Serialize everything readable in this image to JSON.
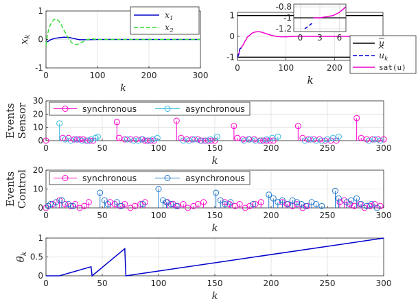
{
  "colors": {
    "x1": "#0000cc",
    "x2": "#33dd33",
    "sat": "#ee00cc",
    "u_bar": "#000000",
    "u_hat": "#0000cc",
    "sync_sensor": "#ff00cc",
    "async_sensor": "#33bbdd",
    "sync_control": "#ff00cc",
    "async_control": "#1f77cc",
    "theta": "#0000cc"
  },
  "chart_data": [
    {
      "id": "states",
      "type": "line",
      "ylabel": "x_k",
      "xlabel": "k",
      "xlim": [
        0,
        300
      ],
      "ylim": [
        -1,
        1
      ],
      "xticks": [
        "0",
        "100",
        "200",
        "300"
      ],
      "yticks": [
        "-1",
        "0",
        "1"
      ],
      "grid": true,
      "legend_position": "top-right",
      "series": [
        {
          "name": "x1",
          "label_base": "x",
          "label_sub": "1",
          "x": [
            0,
            3,
            8,
            15,
            25,
            35,
            45,
            55,
            65,
            80,
            100,
            130,
            300
          ],
          "y": [
            -0.05,
            -0.08,
            -0.02,
            0.03,
            0.06,
            0.08,
            0.07,
            0.03,
            -0.01,
            -0.01,
            0.0,
            0.0,
            0.0
          ]
        },
        {
          "name": "x2",
          "label_base": "x",
          "label_sub": "2",
          "x": [
            0,
            3,
            8,
            15,
            20,
            25,
            30,
            40,
            50,
            60,
            70,
            80,
            90,
            100,
            120,
            300
          ],
          "y": [
            -0.2,
            0.2,
            0.5,
            0.7,
            0.72,
            0.65,
            0.5,
            0.15,
            -0.12,
            -0.18,
            -0.1,
            0.0,
            0.02,
            0.0,
            0.0,
            0.0
          ]
        }
      ]
    },
    {
      "id": "inputs",
      "type": "line",
      "xlabel": "k",
      "xlim": [
        0,
        300
      ],
      "ylim": [
        -1.15,
        1.15
      ],
      "xticks": [
        "0",
        "100",
        "200",
        "300"
      ],
      "yticks": [
        "-1",
        "0",
        "1"
      ],
      "grid": true,
      "legend_position": "bottom-right",
      "series": [
        {
          "name": "u_bar_upper",
          "x": [
            0,
            300
          ],
          "y": [
            1,
            1
          ]
        },
        {
          "name": "u_bar_lower",
          "x": [
            0,
            300
          ],
          "y": [
            -1,
            -1
          ]
        },
        {
          "name": "u_hat",
          "x": [
            0,
            3,
            5,
            10
          ],
          "y": [
            -1.0,
            -0.8,
            -0.6,
            -0.5
          ]
        },
        {
          "name": "sat_u_hat",
          "x": [
            0,
            3,
            5,
            8,
            10,
            12,
            15,
            18,
            20,
            25,
            30,
            35,
            40,
            45,
            50,
            60,
            70,
            80,
            90,
            100,
            120,
            150,
            300
          ],
          "y": [
            -1,
            -0.85,
            -0.6,
            -0.55,
            -0.45,
            -0.4,
            -0.25,
            -0.15,
            -0.05,
            0.05,
            0.15,
            0.2,
            0.22,
            0.22,
            0.2,
            0.12,
            0.05,
            0.0,
            -0.02,
            -0.02,
            0.0,
            0.0,
            0.0
          ]
        }
      ],
      "legend": [
        "u_bar",
        "u_hat_k",
        "sat(u_hat_k)"
      ],
      "legend_text": {
        "u_bar": "u",
        "u_hat": "u",
        "u_hat_sub": "k",
        "sat": "sat(",
        "sat_close": ")"
      },
      "inset": {
        "xlim": [
          -1,
          7
        ],
        "ylim": [
          -1.25,
          -0.75
        ],
        "xticks": [
          "0",
          "3",
          "6"
        ],
        "yticks": [
          "-0.8",
          "-1",
          "-1.2"
        ],
        "series": [
          {
            "name": "u_bar_lower",
            "x": [
              -1,
              7
            ],
            "y": [
              -1,
              -1
            ]
          },
          {
            "name": "u_hat",
            "x": [
              0.7,
              1.8
            ],
            "y": [
              -1.2,
              -1.1
            ]
          },
          {
            "name": "sat_u_hat",
            "x": [
              2,
              3,
              4,
              5,
              6,
              7
            ],
            "y": [
              -1.0,
              -1.0,
              -0.98,
              -0.96,
              -0.9,
              -0.8
            ]
          }
        ]
      }
    },
    {
      "id": "sensor_events",
      "type": "scatter",
      "ylabel_line1": "Sensor",
      "ylabel_line2": "Events",
      "xlabel": "k",
      "xlim": [
        0,
        300
      ],
      "ylim": [
        0,
        30
      ],
      "xticks": [
        "0",
        "50",
        "100",
        "150",
        "200",
        "250",
        "300"
      ],
      "yticks": [
        "0",
        "10",
        "20",
        "30"
      ],
      "grid": true,
      "legend": [
        "synchronous",
        "asynchronous"
      ],
      "series": [
        {
          "name": "synchronous",
          "x": [
            0,
            15,
            20,
            25,
            28,
            30,
            33,
            36,
            39,
            42,
            63,
            65,
            70,
            75,
            80,
            85,
            88,
            90,
            93,
            96,
            116,
            120,
            125,
            130,
            135,
            138,
            141,
            144,
            147,
            150,
            167,
            170,
            175,
            180,
            185,
            190,
            193,
            196,
            199,
            202,
            224,
            228,
            233,
            238,
            243,
            248,
            253,
            258,
            276,
            280,
            285,
            290,
            295,
            300
          ],
          "y": [
            0,
            2,
            2,
            1,
            1,
            1,
            1,
            0,
            0,
            0,
            14,
            2,
            1,
            1,
            1,
            1,
            0,
            0,
            0,
            0,
            15,
            2,
            1,
            1,
            1,
            0,
            0,
            0,
            0,
            0,
            11,
            2,
            1,
            1,
            1,
            0,
            0,
            0,
            0,
            0,
            11,
            2,
            1,
            1,
            1,
            0,
            0,
            0,
            17,
            2,
            1,
            1,
            1,
            1
          ]
        },
        {
          "name": "asynchronous",
          "x": [
            12,
            17,
            22,
            27,
            32,
            37,
            40,
            44,
            46,
            72,
            78,
            82,
            86,
            91,
            95,
            99,
            122,
            127,
            132,
            137,
            142,
            146,
            152,
            176,
            181,
            186,
            191,
            196,
            201,
            206,
            230,
            235,
            240,
            245,
            250,
            255,
            260,
            287,
            292,
            297
          ],
          "y": [
            13,
            1,
            0,
            1,
            0,
            0,
            1,
            2,
            3,
            1,
            0,
            0,
            1,
            0,
            1,
            2,
            0,
            0,
            1,
            0,
            0,
            1,
            3,
            0,
            1,
            0,
            0,
            1,
            2,
            3,
            0,
            1,
            0,
            0,
            1,
            2,
            3,
            0,
            1,
            0
          ]
        }
      ]
    },
    {
      "id": "control_events",
      "type": "scatter",
      "ylabel_line1": "Control",
      "ylabel_line2": "Events",
      "xlabel": "k",
      "xlim": [
        0,
        300
      ],
      "ylim": [
        0,
        20
      ],
      "xticks": [
        "0",
        "50",
        "100",
        "150",
        "200",
        "250",
        "300"
      ],
      "yticks": [
        "0",
        "10",
        "20"
      ],
      "grid": true,
      "legend": [
        "synchronous",
        "asynchronous"
      ],
      "series": [
        {
          "name": "synchronous",
          "x": [
            0,
            6,
            12,
            17,
            22,
            26,
            30,
            34,
            38,
            57,
            61,
            66,
            70,
            75,
            79,
            84,
            88,
            108,
            113,
            117,
            122,
            126,
            131,
            135,
            140,
            159,
            163,
            168,
            172,
            177,
            181,
            186,
            191,
            210,
            214,
            219,
            223,
            228,
            232,
            261,
            265,
            270,
            274,
            279,
            283,
            288,
            292,
            297
          ],
          "y": [
            0,
            2,
            4,
            2,
            1,
            2,
            0,
            1,
            3,
            3,
            2,
            1,
            2,
            0,
            1,
            2,
            3,
            3,
            2,
            1,
            2,
            0,
            1,
            2,
            3,
            3,
            2,
            1,
            2,
            0,
            1,
            2,
            3,
            3,
            2,
            1,
            2,
            0,
            1,
            3,
            4,
            2,
            1,
            2,
            0,
            1,
            2,
            1
          ]
        },
        {
          "name": "asynchronous",
          "x": [
            2,
            4,
            9,
            14,
            20,
            24,
            48,
            52,
            55,
            63,
            67,
            86,
            100,
            104,
            107,
            111,
            116,
            151,
            155,
            159,
            164,
            184,
            198,
            202,
            206,
            210,
            215,
            219,
            223,
            227,
            231,
            236,
            240,
            245,
            257,
            260,
            267,
            271,
            276,
            280,
            285,
            289,
            294
          ],
          "y": [
            1,
            2,
            3,
            4,
            2,
            1,
            8,
            4,
            2,
            3,
            1,
            2,
            10,
            4,
            3,
            2,
            1,
            8,
            4,
            2,
            3,
            2,
            7,
            5,
            3,
            4,
            2,
            4,
            3,
            2,
            1,
            3,
            2,
            1,
            9,
            5,
            3,
            4,
            5,
            2,
            1,
            2,
            0
          ]
        }
      ]
    },
    {
      "id": "theta",
      "type": "line",
      "ylabel": "theta_k",
      "ylabel_text": {
        "base": "θ",
        "sub": "k"
      },
      "xlabel": "k",
      "xlim": [
        0,
        300
      ],
      "ylim": [
        0,
        1
      ],
      "xticks": [
        "0",
        "50",
        "100",
        "150",
        "200",
        "250",
        "300"
      ],
      "yticks": [
        "0",
        "0.5",
        "1"
      ],
      "grid": true,
      "series": [
        {
          "name": "theta",
          "x": [
            0,
            12,
            40,
            41,
            70,
            71,
            300
          ],
          "y": [
            0,
            0,
            0.24,
            0.0,
            0.72,
            0.0,
            1.0
          ]
        }
      ]
    }
  ]
}
